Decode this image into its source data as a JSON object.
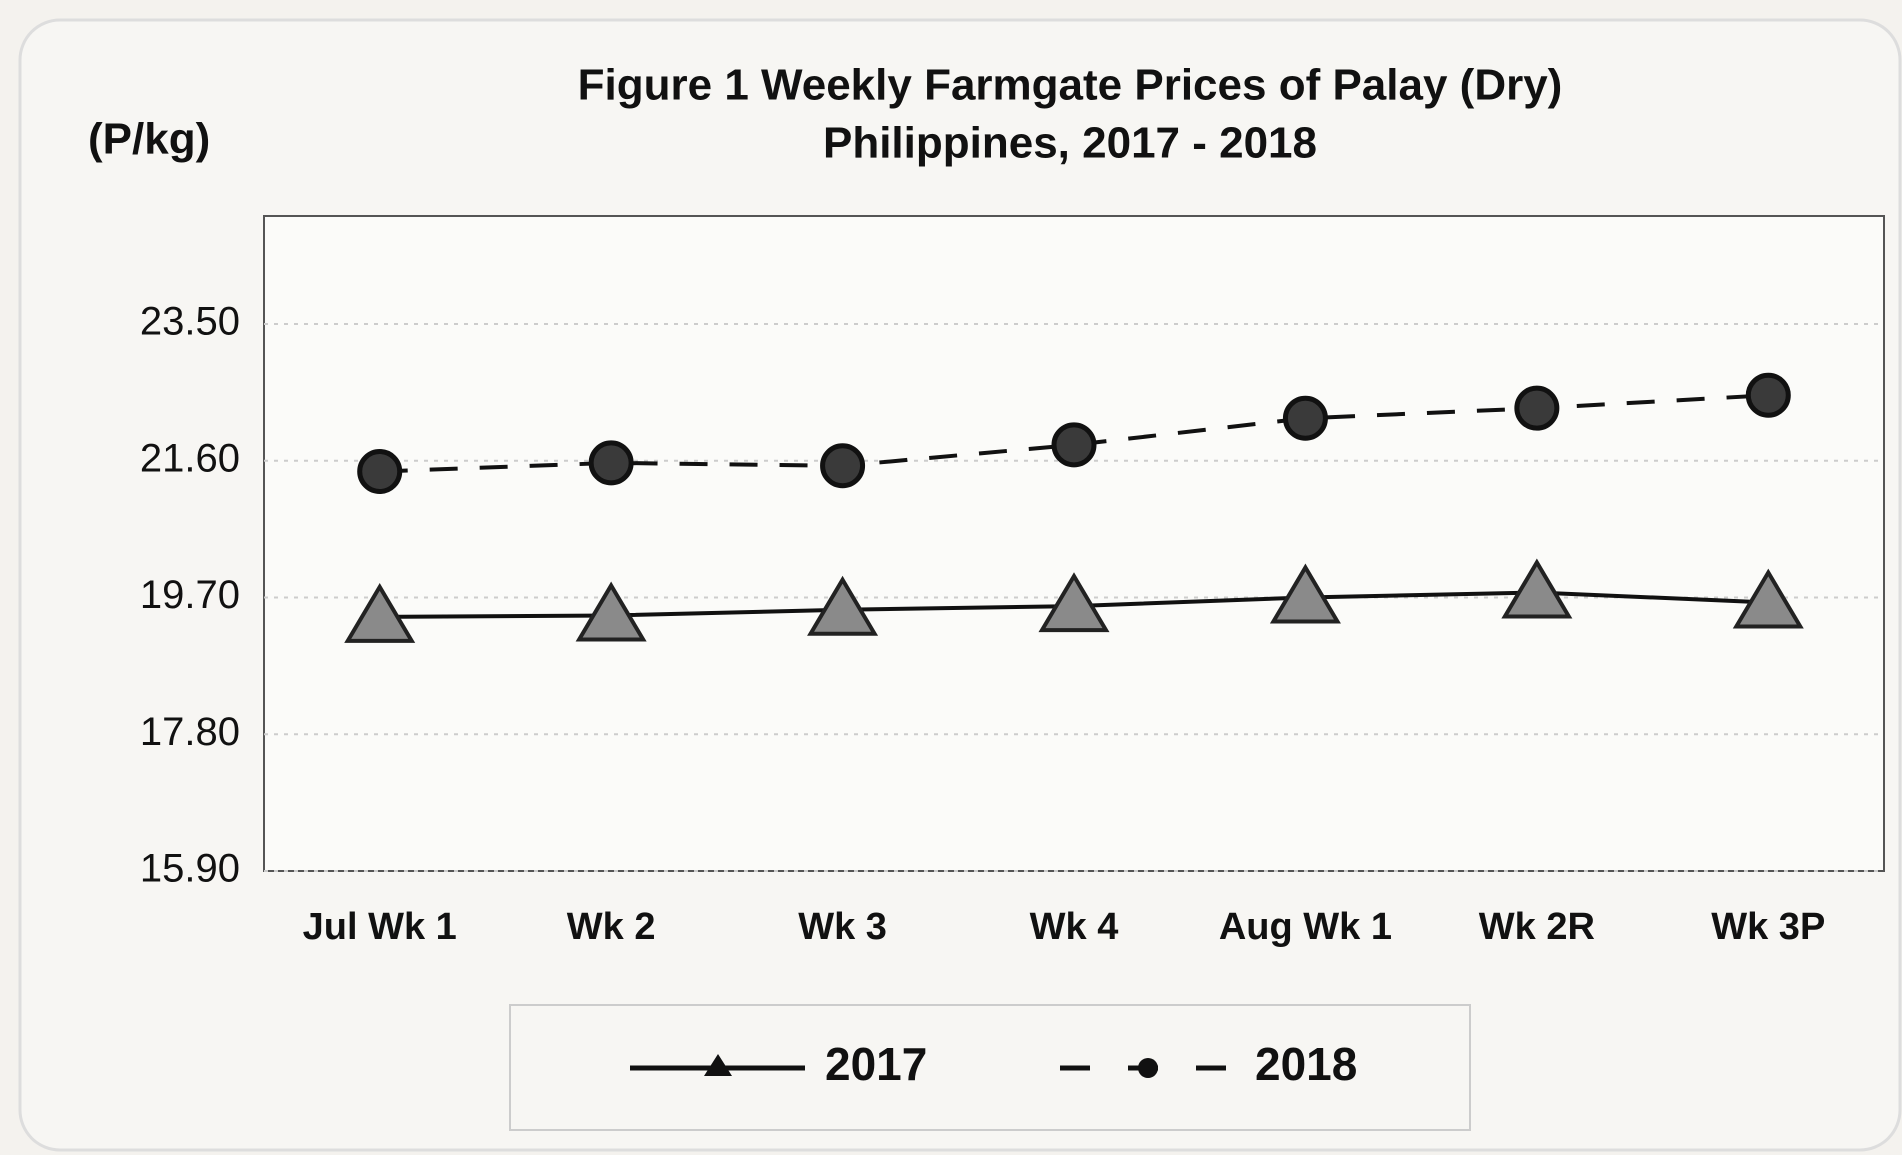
{
  "chart_data": {
    "type": "line",
    "title": "Figure 1  Weekly Farmgate Prices of Palay (Dry)",
    "subtitle": "Philippines,  2017 - 2018",
    "y_label": "(P/kg)",
    "categories": [
      "Jul Wk 1",
      "Wk 2",
      "Wk 3",
      "Wk 4",
      "Aug Wk 1",
      "Wk 2R",
      "Wk 3P"
    ],
    "series": [
      {
        "name": "2017",
        "color": "#111111",
        "marker_color": "#8a8a8a",
        "marker": "triangle",
        "line_style": "solid",
        "values": [
          19.43,
          19.45,
          19.53,
          19.58,
          19.7,
          19.77,
          19.63
        ]
      },
      {
        "name": "2018",
        "color": "#111111",
        "marker_color": "#3a3a3a",
        "marker": "circle",
        "line_style": "dashed",
        "values": [
          21.45,
          21.57,
          21.53,
          21.82,
          22.19,
          22.33,
          22.51
        ]
      }
    ],
    "ylim": [
      15.9,
      25.0
    ],
    "yticks": [
      {
        "value": 15.9,
        "label": "15.90"
      },
      {
        "value": 17.8,
        "label": "17.80"
      },
      {
        "value": 19.7,
        "label": "19.70"
      },
      {
        "value": 21.6,
        "label": "21.60"
      },
      {
        "value": 23.5,
        "label": "23.50"
      }
    ],
    "grid": true,
    "legend": "bottom"
  }
}
